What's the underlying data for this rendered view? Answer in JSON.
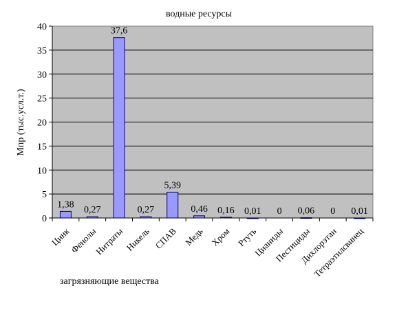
{
  "chart_data": {
    "type": "bar",
    "title": "водные ресурсы",
    "xlabel": "загрязняющие вещества",
    "ylabel": "Мпр (тыс.усл.т.)",
    "categories": [
      "Цинк",
      "Фенолы",
      "Нитраты",
      "Никель",
      "СПАВ",
      "Медь",
      "Хром",
      "Ртуть",
      "Цианиды",
      "Пестициды",
      "Дихлорэтан",
      "Тетраэтилсвинец"
    ],
    "values": [
      1.38,
      0.27,
      37.6,
      0.27,
      5.39,
      0.46,
      0.16,
      0.01,
      0,
      0.06,
      0,
      0.01
    ],
    "data_labels": [
      "1,38",
      "0,27",
      "37,6",
      "0,27",
      "5,39",
      "0,46",
      "0,16",
      "0,01",
      "0",
      "0,06",
      "0",
      "0,01"
    ],
    "ylim": [
      0,
      40
    ],
    "yticks": [
      "0",
      "5",
      "10",
      "15",
      "20",
      "25",
      "30",
      "35",
      "40"
    ],
    "grid": true,
    "plot_background": "#c0c0c0",
    "bar_color": "#9999ff",
    "bar_edge": "#000080"
  }
}
